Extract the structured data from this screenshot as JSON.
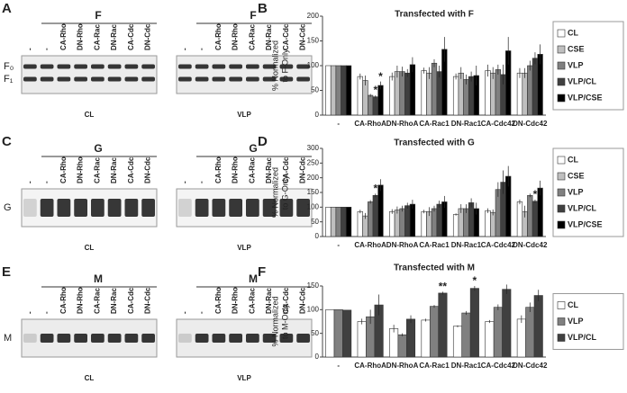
{
  "blots": [
    {
      "letter": "A",
      "protein": "F",
      "band_labels": [
        "F₀",
        "F₁"
      ],
      "panels": [
        {
          "header": "F",
          "caption": "CL",
          "lanes": [
            "-",
            "-",
            "CA-Rho",
            "DN-Rho",
            "CA-Rac",
            "DN-Rac",
            "CA-Cdc",
            "DN-Cdc"
          ]
        },
        {
          "header": "F",
          "caption": "VLP",
          "lanes": [
            "-",
            "-",
            "CA-Rho",
            "DN-Rho",
            "CA-Rac",
            "DN-Rac",
            "CA-Cdc",
            "DN-Cdc"
          ]
        }
      ]
    },
    {
      "letter": "C",
      "protein": "G",
      "band_labels": [
        "G"
      ],
      "panels": [
        {
          "header": "G",
          "caption": "CL",
          "lanes": [
            "-",
            "-",
            "CA-Rho",
            "DN-Rho",
            "CA-Rac",
            "DN-Rac",
            "CA-Cdc",
            "DN-Cdc"
          ]
        },
        {
          "header": "G",
          "caption": "VLP",
          "lanes": [
            "-",
            "-",
            "CA-Rho",
            "DN-Rho",
            "CA-Rac",
            "DN-Rac",
            "CA-Cdc",
            "DN-Cdc"
          ]
        }
      ]
    },
    {
      "letter": "E",
      "protein": "M",
      "band_labels": [
        "M"
      ],
      "panels": [
        {
          "header": "M",
          "caption": "CL",
          "lanes": [
            "-",
            "-",
            "CA-Rho",
            "DN-Rho",
            "CA-Rac",
            "DN-Rac",
            "CA-Cdc",
            "DN-Cdc"
          ]
        },
        {
          "header": "M",
          "caption": "VLP",
          "lanes": [
            "-",
            "-",
            "CA-Rho",
            "DN-Rho",
            "CA-Rac",
            "DN-Rac",
            "CA-Cdc",
            "DN-Cdc"
          ]
        }
      ]
    }
  ],
  "chart_data": [
    {
      "type": "bar",
      "letter": "B",
      "title": "Transfected  with F",
      "y_label": [
        "% Normalized",
        "to F-Only"
      ],
      "categories": [
        "-",
        "CA-RhoA",
        "DN-RhoA",
        "CA-Rac1",
        "DN-Rac1",
        "CA-Cdc42",
        "DN-Cdc42"
      ],
      "series": [
        {
          "name": "CL",
          "color": "#ffffff",
          "values": [
            100,
            78,
            78,
            90,
            78,
            90,
            85
          ],
          "errors": [
            0,
            6,
            8,
            6,
            6,
            12,
            10
          ]
        },
        {
          "name": "CSE",
          "color": "#bfbfbf",
          "values": [
            100,
            70,
            88,
            85,
            85,
            85,
            85
          ],
          "errors": [
            0,
            10,
            12,
            12,
            12,
            12,
            10
          ]
        },
        {
          "name": "VLP",
          "color": "#808080",
          "values": [
            100,
            40,
            88,
            105,
            72,
            92,
            100
          ],
          "errors": [
            0,
            3,
            10,
            8,
            10,
            10,
            10
          ]
        },
        {
          "name": "VLP/CL",
          "color": "#404040",
          "values": [
            100,
            37,
            85,
            88,
            78,
            82,
            115
          ],
          "errors": [
            0,
            3,
            8,
            12,
            10,
            20,
            12
          ]
        },
        {
          "name": "VLP/CSE",
          "color": "#000000",
          "values": [
            100,
            60,
            102,
            133,
            80,
            130,
            123
          ],
          "errors": [
            0,
            8,
            15,
            25,
            20,
            28,
            20
          ]
        }
      ],
      "annotations": [
        {
          "text": "*",
          "category": "CA-RhoA",
          "series": "VLP/CL"
        },
        {
          "text": "*",
          "category": "CA-RhoA",
          "series": "VLP/CSE"
        }
      ],
      "ylim": [
        0,
        200
      ],
      "yticks": [
        0,
        50,
        100,
        150,
        200
      ],
      "legend": "right"
    },
    {
      "type": "bar",
      "letter": "D",
      "title": "Transfected  with G",
      "y_label": [
        "% Normalized",
        "to G-Only"
      ],
      "categories": [
        "-",
        "CA-RhoA",
        "DN-RhoA",
        "CA-Rac1",
        "DN-Rac1",
        "CA-Cdc42",
        "DN-Cdc42"
      ],
      "series": [
        {
          "name": "CL",
          "color": "#ffffff",
          "values": [
            100,
            85,
            85,
            85,
            75,
            88,
            118
          ],
          "errors": [
            0,
            6,
            8,
            6,
            4,
            8,
            8
          ]
        },
        {
          "name": "CSE",
          "color": "#bfbfbf",
          "values": [
            100,
            70,
            90,
            85,
            95,
            82,
            85
          ],
          "errors": [
            0,
            10,
            12,
            15,
            15,
            10,
            20
          ]
        },
        {
          "name": "VLP",
          "color": "#808080",
          "values": [
            100,
            118,
            95,
            95,
            95,
            160,
            140
          ],
          "errors": [
            0,
            6,
            10,
            10,
            15,
            25,
            6
          ]
        },
        {
          "name": "VLP/CL",
          "color": "#404040",
          "values": [
            100,
            140,
            105,
            110,
            115,
            185,
            120
          ],
          "errors": [
            0,
            6,
            10,
            12,
            15,
            40,
            6
          ]
        },
        {
          "name": "VLP/CSE",
          "color": "#000000",
          "values": [
            100,
            175,
            110,
            118,
            95,
            205,
            165
          ],
          "errors": [
            0,
            20,
            15,
            20,
            20,
            35,
            25
          ]
        }
      ],
      "annotations": [
        {
          "text": "*",
          "category": "CA-RhoA",
          "series": "VLP/CL"
        },
        {
          "text": "*",
          "category": "DN-Cdc42",
          "series": "VLP/CL"
        }
      ],
      "ylim": [
        0,
        300
      ],
      "yticks": [
        0,
        50,
        100,
        150,
        200,
        250,
        300
      ],
      "legend": "right"
    },
    {
      "type": "bar",
      "letter": "F",
      "title": "Transfected with M",
      "y_label": [
        "% Normalized",
        "to M-Only"
      ],
      "categories": [
        "-",
        "CA-RhoA",
        "DN-RhoA",
        "CA-Rac1",
        "DN-Rac1",
        "CA-Cdc42",
        "DN-Cdc42"
      ],
      "series": [
        {
          "name": "CL",
          "color": "#ffffff",
          "values": [
            100,
            75,
            60,
            78,
            65,
            75,
            80
          ],
          "errors": [
            0,
            6,
            8,
            3,
            2,
            3,
            8
          ]
        },
        {
          "name": "VLP",
          "color": "#808080",
          "values": [
            100,
            85,
            47,
            107,
            93,
            105,
            105
          ],
          "errors": [
            0,
            15,
            3,
            3,
            4,
            6,
            10
          ]
        },
        {
          "name": "VLP/CL",
          "color": "#404040",
          "values": [
            99,
            110,
            80,
            135,
            145,
            143,
            130
          ],
          "errors": [
            0,
            22,
            8,
            3,
            5,
            10,
            12
          ]
        }
      ],
      "annotations": [
        {
          "text": "**",
          "category": "CA-Rac1",
          "series": "VLP/CL"
        },
        {
          "text": "*",
          "category": "DN-Rac1",
          "series": "VLP/CL"
        }
      ],
      "ylim": [
        0,
        150
      ],
      "yticks": [
        0,
        50,
        100,
        150
      ],
      "legend": "right"
    }
  ]
}
